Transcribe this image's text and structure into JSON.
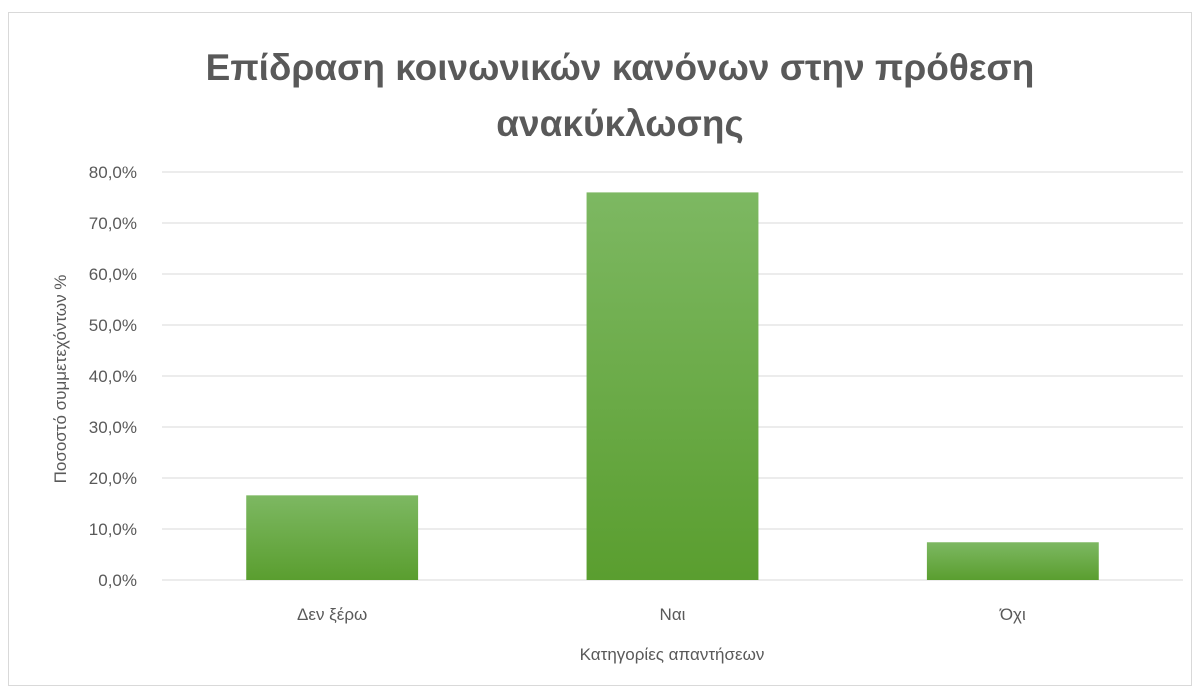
{
  "chart_data": {
    "type": "bar",
    "title_lines": [
      "Επίδραση κοινωνικών κανόνων στην πρόθεση",
      "ανακύκλωσης"
    ],
    "categories": [
      "Δεν ξέρω",
      "Ναι",
      "Όχι"
    ],
    "values": [
      16.6,
      76.0,
      7.4
    ],
    "xlabel": "Κατηγορίες απαντήσεων",
    "ylabel": "Ποσοστό συμμετεχόντων %",
    "ylim": [
      0,
      80
    ],
    "yticks": [
      "0,0%",
      "10,0%",
      "20,0%",
      "30,0%",
      "40,0%",
      "50,0%",
      "60,0%",
      "70,0%",
      "80,0%"
    ],
    "grid": true,
    "colors": {
      "bar_top": "#7db862",
      "bar_bottom": "#5a9e2f",
      "grid": "#d9d9d9",
      "text": "#595959"
    }
  }
}
